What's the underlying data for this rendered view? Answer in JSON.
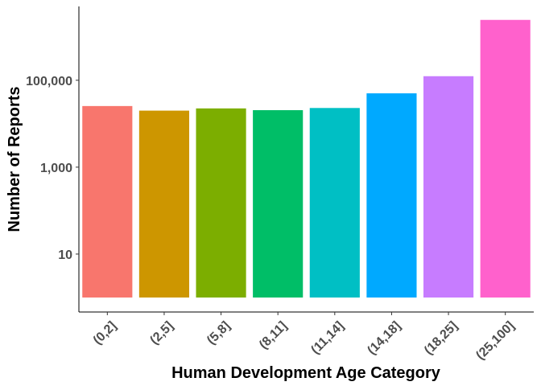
{
  "chart_data": {
    "type": "bar",
    "x_label": "Human Development Age Category",
    "y_label": "Number of Reports",
    "categories": [
      "(0,2]",
      "(2,5]",
      "(5,8]",
      "(8,11]",
      "(11,14]",
      "(14,18]",
      "(18,25]",
      "(25,100]"
    ],
    "values": [
      25500,
      20000,
      22500,
      20500,
      23000,
      50000,
      124000,
      2450000
    ],
    "colors": [
      "#F8766D",
      "#CD9600",
      "#7CAE00",
      "#00BE67",
      "#00BFC4",
      "#00A9FF",
      "#C77CFF",
      "#FF61CC"
    ],
    "log_scale": true,
    "ylim": [
      0.464,
      5000000
    ],
    "yticks": [
      {
        "value": 10,
        "label": "10"
      },
      {
        "value": 1000,
        "label": "1,000"
      },
      {
        "value": 100000,
        "label": "100,000"
      }
    ],
    "grid": false
  }
}
